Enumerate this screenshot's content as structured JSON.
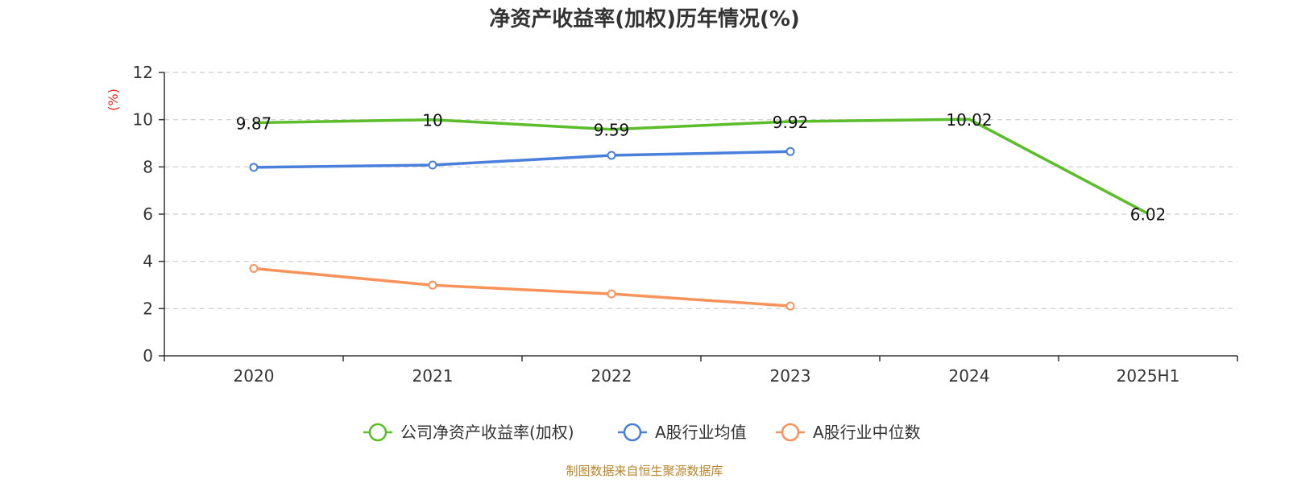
{
  "chart_data": {
    "type": "line",
    "title": "净资产收益率(加权)历年情况(%)",
    "ylabel": "(%)",
    "categories": [
      "2020",
      "2021",
      "2022",
      "2023",
      "2024",
      "2025H1"
    ],
    "ylim": [
      0,
      12
    ],
    "yticks": [
      0,
      2,
      4,
      6,
      8,
      10,
      12
    ],
    "grid": true,
    "legend_position": "bottom",
    "series": [
      {
        "name": "公司净资产收益率(加权)",
        "color": "#5cbd2a",
        "values": [
          9.87,
          10,
          9.59,
          9.92,
          10.02,
          6.02
        ],
        "data_labels": [
          "9.87",
          "10",
          "9.59",
          "9.92",
          "10.02",
          "6.02"
        ],
        "markers": false
      },
      {
        "name": "A股行业均值",
        "color": "#4a7fdb",
        "values": [
          7.98,
          8.08,
          8.49,
          8.65,
          null,
          null
        ],
        "markers": true
      },
      {
        "name": "A股行业中位数",
        "color": "#f7935a",
        "values": [
          3.7,
          2.99,
          2.62,
          2.11,
          null,
          null
        ],
        "markers": true
      }
    ]
  },
  "axis_color": "#333333",
  "grid_color": "#cccccc",
  "ylabel_color": "#e8281c",
  "source": {
    "text": "制图数据来自恒生聚源数据库",
    "color": "#b8862b"
  }
}
